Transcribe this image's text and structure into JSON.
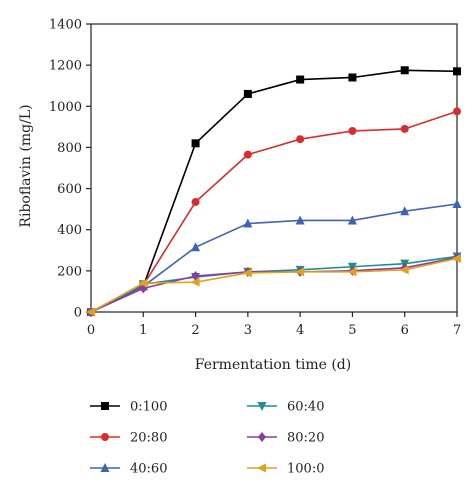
{
  "chart_data": {
    "type": "line",
    "xlabel": "Fermentation time (d)",
    "ylabel": "Riboflavin (mg/L)",
    "xlim": [
      0,
      7
    ],
    "ylim": [
      0,
      1400
    ],
    "x_ticks": [
      0,
      1,
      2,
      3,
      4,
      5,
      6,
      7
    ],
    "y_ticks": [
      0,
      200,
      400,
      600,
      800,
      1000,
      1200,
      1400
    ],
    "grid": false,
    "legend_position": "bottom",
    "x": [
      0,
      1,
      2,
      3,
      4,
      5,
      6,
      7
    ],
    "series": [
      {
        "name": "0:100",
        "color": "#000000",
        "marker": "square",
        "values": [
          0,
          125,
          820,
          1060,
          1130,
          1140,
          1175,
          1170
        ]
      },
      {
        "name": "20:80",
        "color": "#d62e2e",
        "marker": "circle",
        "values": [
          0,
          130,
          535,
          765,
          840,
          880,
          890,
          975
        ]
      },
      {
        "name": "40:60",
        "color": "#3e63b4",
        "marker": "triangle-up",
        "values": [
          0,
          125,
          315,
          430,
          445,
          445,
          490,
          525
        ]
      },
      {
        "name": "60:40",
        "color": "#1d8f8f",
        "marker": "triangle-down",
        "values": [
          0,
          135,
          170,
          195,
          205,
          220,
          235,
          270
        ]
      },
      {
        "name": "80:20",
        "color": "#8a3d9e",
        "marker": "diamond",
        "values": [
          0,
          115,
          175,
          195,
          195,
          200,
          215,
          265
        ]
      },
      {
        "name": "100:0",
        "color": "#e0a11c",
        "marker": "triangle-left",
        "values": [
          0,
          140,
          145,
          190,
          195,
          195,
          205,
          260
        ]
      }
    ]
  }
}
